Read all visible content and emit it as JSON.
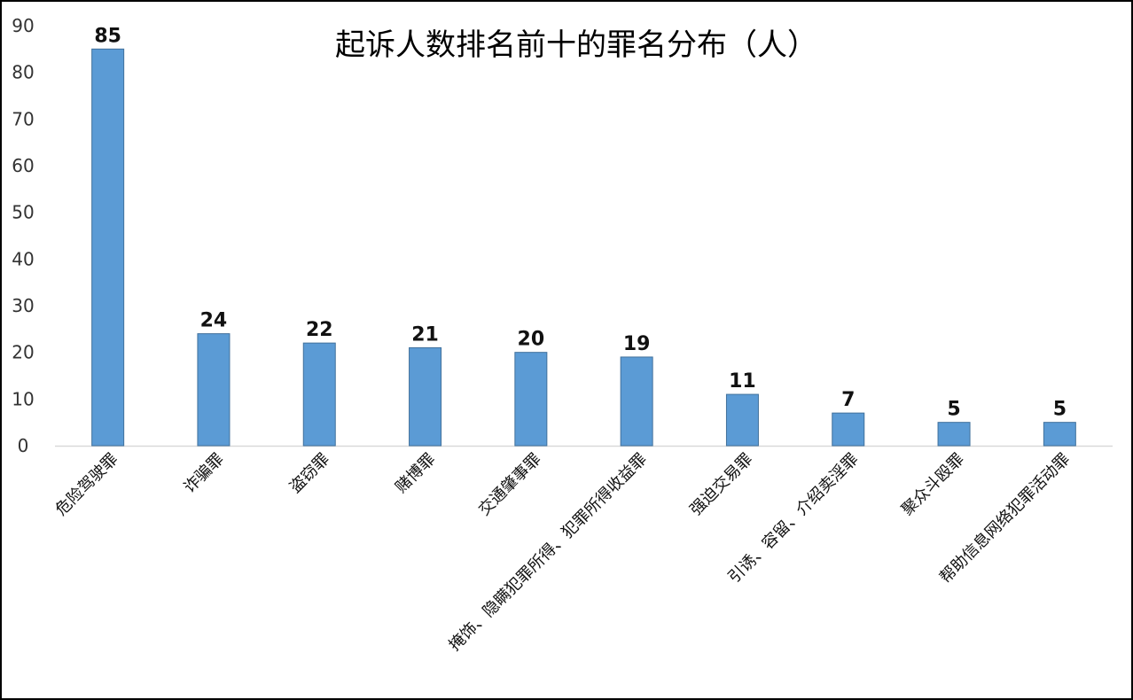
{
  "chart_data": {
    "type": "bar",
    "title": "起诉人数排名前十的罪名分布（人）",
    "xlabel": "",
    "ylabel": "",
    "ylim": [
      0,
      90
    ],
    "yticks": [
      0,
      10,
      20,
      30,
      40,
      50,
      60,
      70,
      80,
      90
    ],
    "grid": false,
    "bar_color": "#5b9bd5",
    "categories": [
      "危险驾驶罪",
      "诈骗罪",
      "盗窃罪",
      "赌博罪",
      "交通肇事罪",
      "掩饰、隐瞒犯罪所得、犯罪所得收益罪",
      "强迫交易罪",
      "引诱、容留、介绍卖淫罪",
      "聚众斗殴罪",
      "帮助信息网络犯罪活动罪"
    ],
    "values": [
      85,
      24,
      22,
      21,
      20,
      19,
      11,
      7,
      5,
      5
    ]
  }
}
